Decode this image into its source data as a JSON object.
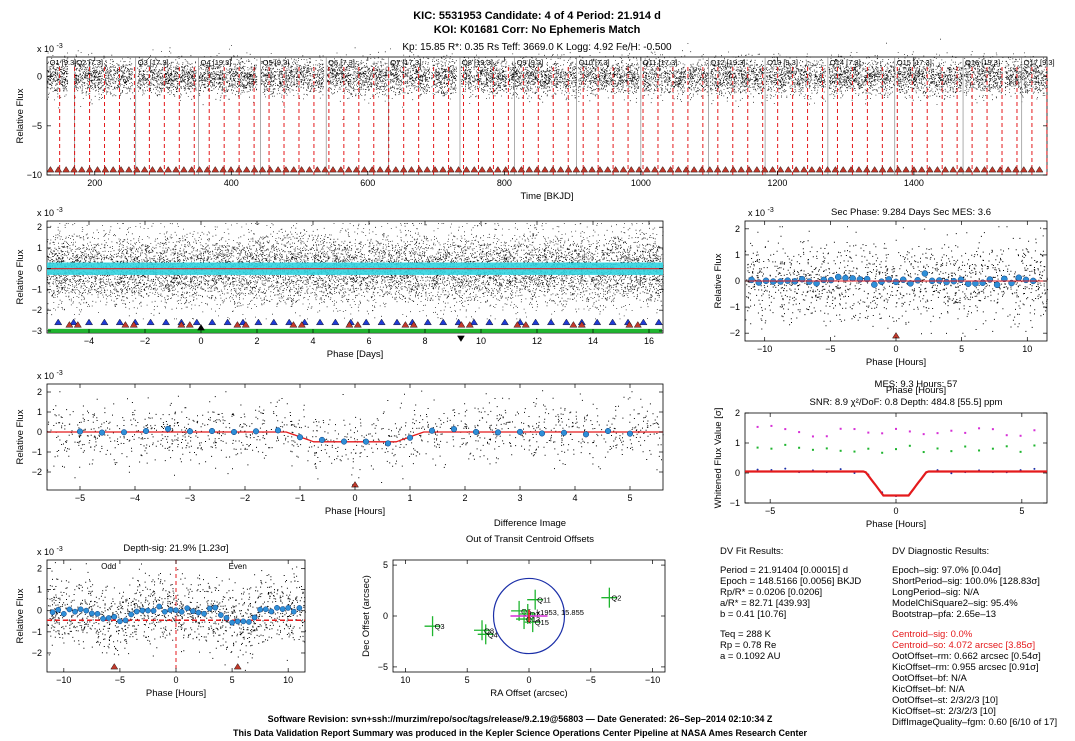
{
  "header": {
    "line1": "KIC: 5531953     Candidate: 4 of 4     Period: 21.914 d",
    "line2": "KOI: K01681     Corr: No Ephemeris Match",
    "line3": "Kp: 15.85     R*: 0.35 Rs     Teff: 3669.0 K     Logg: 4.92     Fe/H: -0.500"
  },
  "colors": {
    "flux": "#000000",
    "binned": "#2e8fd8",
    "model": "#e41a1c",
    "cyan": "#32d4e0",
    "triangle_red": "#c0392b",
    "triangle_blue": "#1f3bd6",
    "green": "#1fb52f",
    "magenta": "#d62fd6",
    "navy": "#1b2fa8"
  },
  "exp10": "x 10",
  "exp_power": "-3",
  "chart_data": [
    {
      "id": "full_lightcurve",
      "type": "scatter",
      "xlabel": "Time [BKJD]",
      "ylabel": "Relative Flux",
      "xlim": [
        130,
        1595
      ],
      "ylim": [
        -10,
        2
      ],
      "xticks": [
        200,
        400,
        600,
        800,
        1000,
        1200,
        1400
      ],
      "yticks": [
        -10,
        -5,
        0
      ],
      "quarters": [
        {
          "label": "Q1 [9.3]",
          "x": 131
        },
        {
          "label": "Q2 [7.3]",
          "x": 170
        },
        {
          "label": "Q3 [17.3]",
          "x": 260
        },
        {
          "label": "Q4 [19.3]",
          "x": 352
        },
        {
          "label": "Q5 [9.3]",
          "x": 443
        },
        {
          "label": "Q6 [7.3]",
          "x": 539
        },
        {
          "label": "Q7 [17.3]",
          "x": 630
        },
        {
          "label": "Q8 [19.3]",
          "x": 735
        },
        {
          "label": "Q9 [9.3]",
          "x": 815
        },
        {
          "label": "Q10 [7.3]",
          "x": 906
        },
        {
          "label": "Q11 [17.3]",
          "x": 1000
        },
        {
          "label": "Q12 [19.3]",
          "x": 1099
        },
        {
          "label": "Q13 [9.3]",
          "x": 1182
        },
        {
          "label": "Q14 [7.3]",
          "x": 1274
        },
        {
          "label": "Q15 [17.3]",
          "x": 1372
        },
        {
          "label": "Q16 [19.3]",
          "x": 1472
        },
        {
          "label": "Q17 [9.3]",
          "x": 1558
        }
      ],
      "transit_epoch": 148.5166,
      "period": 21.914
    },
    {
      "id": "phase_days",
      "type": "scatter",
      "xlabel": "Phase [Days]",
      "ylabel": "Relative Flux",
      "xlim": [
        -5.5,
        16.5
      ],
      "ylim": [
        -3.1,
        2.3
      ],
      "xticks": [
        -4,
        -2,
        0,
        2,
        4,
        6,
        8,
        10,
        12,
        14,
        16
      ],
      "yticks": [
        -3,
        -2,
        -1,
        0,
        1,
        2
      ],
      "secondary_phase_days": 9.284
    },
    {
      "id": "secondary",
      "type": "scatter",
      "title": "Sec Phase: 9.284 Days   Sec MES: 3.6",
      "xlabel": "Phase [Hours]",
      "ylabel": "Relative Flux",
      "xlim": [
        -11.5,
        11.5
      ],
      "ylim": [
        -2.3,
        2.3
      ],
      "xticks": [
        -10,
        -5,
        0,
        5,
        10
      ],
      "yticks": [
        -2,
        -1,
        0,
        1,
        2
      ]
    },
    {
      "id": "primary",
      "type": "scatter",
      "xlabel": "Phase [Hours]",
      "ylabel": "Relative Flux",
      "xlim": [
        -5.6,
        5.6
      ],
      "ylim": [
        -2.9,
        2.4
      ],
      "xticks": [
        -5,
        -4,
        -3,
        -2,
        -1,
        0,
        1,
        2,
        3,
        4,
        5
      ],
      "yticks": [
        -2,
        -1,
        0,
        1,
        2
      ],
      "depth_ppm": 484.8,
      "duration_hours": 2.0
    },
    {
      "id": "whitened",
      "type": "line",
      "title_mes": "MES: 9.3     Hours: 57",
      "title_snr": "SNR: 8.9    χ²/DoF: 0.8    Depth: 484.8 [55.5] ppm",
      "overlap_label": "Phase [Hours]",
      "xlabel": "Phase [Hours]",
      "ylabel": "Whitened Flux Value [σ]",
      "xlim": [
        -6,
        6
      ],
      "ylim": [
        -1,
        2
      ],
      "xticks": [
        -5,
        0,
        5
      ],
      "yticks": [
        -1,
        0,
        1,
        2
      ]
    },
    {
      "id": "odd_even",
      "type": "scatter",
      "title": "Depth-sig: 21.9% [1.23σ]",
      "odd_label": "Odd",
      "even_label": "Even",
      "xlabel": "Phase [Hours]",
      "ylabel": "Relative Flux",
      "xlim": [
        -11.5,
        11.5
      ],
      "ylim": [
        -2.9,
        2.4
      ],
      "xticks": [
        -10,
        -5,
        0,
        5,
        10
      ],
      "yticks": [
        -2,
        -1,
        0,
        1,
        2
      ]
    },
    {
      "id": "centroid",
      "type": "scatter",
      "title1": "Difference Image",
      "title2": "Out of Transit Centroid Offsets",
      "xlabel": "RA Offset (arcsec)",
      "ylabel": "Dec Offset (arcsec)",
      "xlim": [
        11,
        -11
      ],
      "ylim": [
        -5.5,
        5.5
      ],
      "xticks": [
        10,
        5,
        0,
        -5,
        -10
      ],
      "yticks": [
        -5,
        0,
        5
      ],
      "points": [
        {
          "label": "Q2",
          "x": -6.5,
          "y": 1.8
        },
        {
          "label": "Q3",
          "x": 7.8,
          "y": -1.0
        },
        {
          "label": "Q4",
          "x": 3.5,
          "y": -1.8
        },
        {
          "label": "Q8",
          "x": 3.8,
          "y": -1.4
        },
        {
          "label": "Q11",
          "x": -0.5,
          "y": 1.6
        },
        {
          "label": "Q5",
          "x": 0.8,
          "y": 0.5
        },
        {
          "label": "Q7",
          "x": 0.1,
          "y": 0.2
        },
        {
          "label": "Q15",
          "x": -0.3,
          "y": -0.6
        },
        {
          "label": "Q13",
          "x": 0.4,
          "y": -0.3
        }
      ],
      "center_label": "k1953, 15.855",
      "circle_radius": 4.1
    }
  ],
  "fit": {
    "title": "DV Fit Results:",
    "lines": [
      "Period = 21.91404 [0.00015] d",
      "Epoch = 148.5166 [0.0056] BKJD",
      "Rp/R* = 0.0206 [0.0206]",
      "a/R* = 82.71 [439.93]",
      "b = 0.41 [10.76]"
    ],
    "lines2": [
      "Teq = 288 K",
      "Rp = 0.78 Re",
      "a = 0.1092 AU"
    ]
  },
  "diag": {
    "title": "DV Diagnostic Results:",
    "lines": [
      "Epoch–sig: 97.0% [0.04σ]",
      "ShortPeriod–sig: 100.0% [128.83σ]",
      "LongPeriod–sig: N/A",
      "ModelChiSquare2–sig: 95.4%",
      "Bootstrap–pfa: 2.65e–13"
    ],
    "red": [
      "Centroid–sig: 0.0%",
      "Centroid–so: 4.072 arcsec [3.85σ]"
    ],
    "lines2": [
      "OotOffset–rm: 0.662 arcsec [0.54σ]",
      "KicOffset–rm: 0.955 arcsec [0.91σ]",
      "OotOffset–bf: N/A",
      "KicOffset–bf: N/A",
      "OotOffset–st: 2/3/2/3 [10]",
      "KicOffset–st: 2/3/2/3 [10]",
      "DiffImageQuality–fgm: 0.60 [6/10 of 17]"
    ]
  },
  "footer": {
    "line1": "Software Revision: svn+ssh://murzim/repo/soc/tags/release/9.2.19@56803   —   Date Generated: 26–Sep–2014 02:10:34 Z",
    "line2": "This Data Validation Report Summary was produced in the Kepler Science Operations Center Pipeline at NASA Ames Research Center"
  }
}
